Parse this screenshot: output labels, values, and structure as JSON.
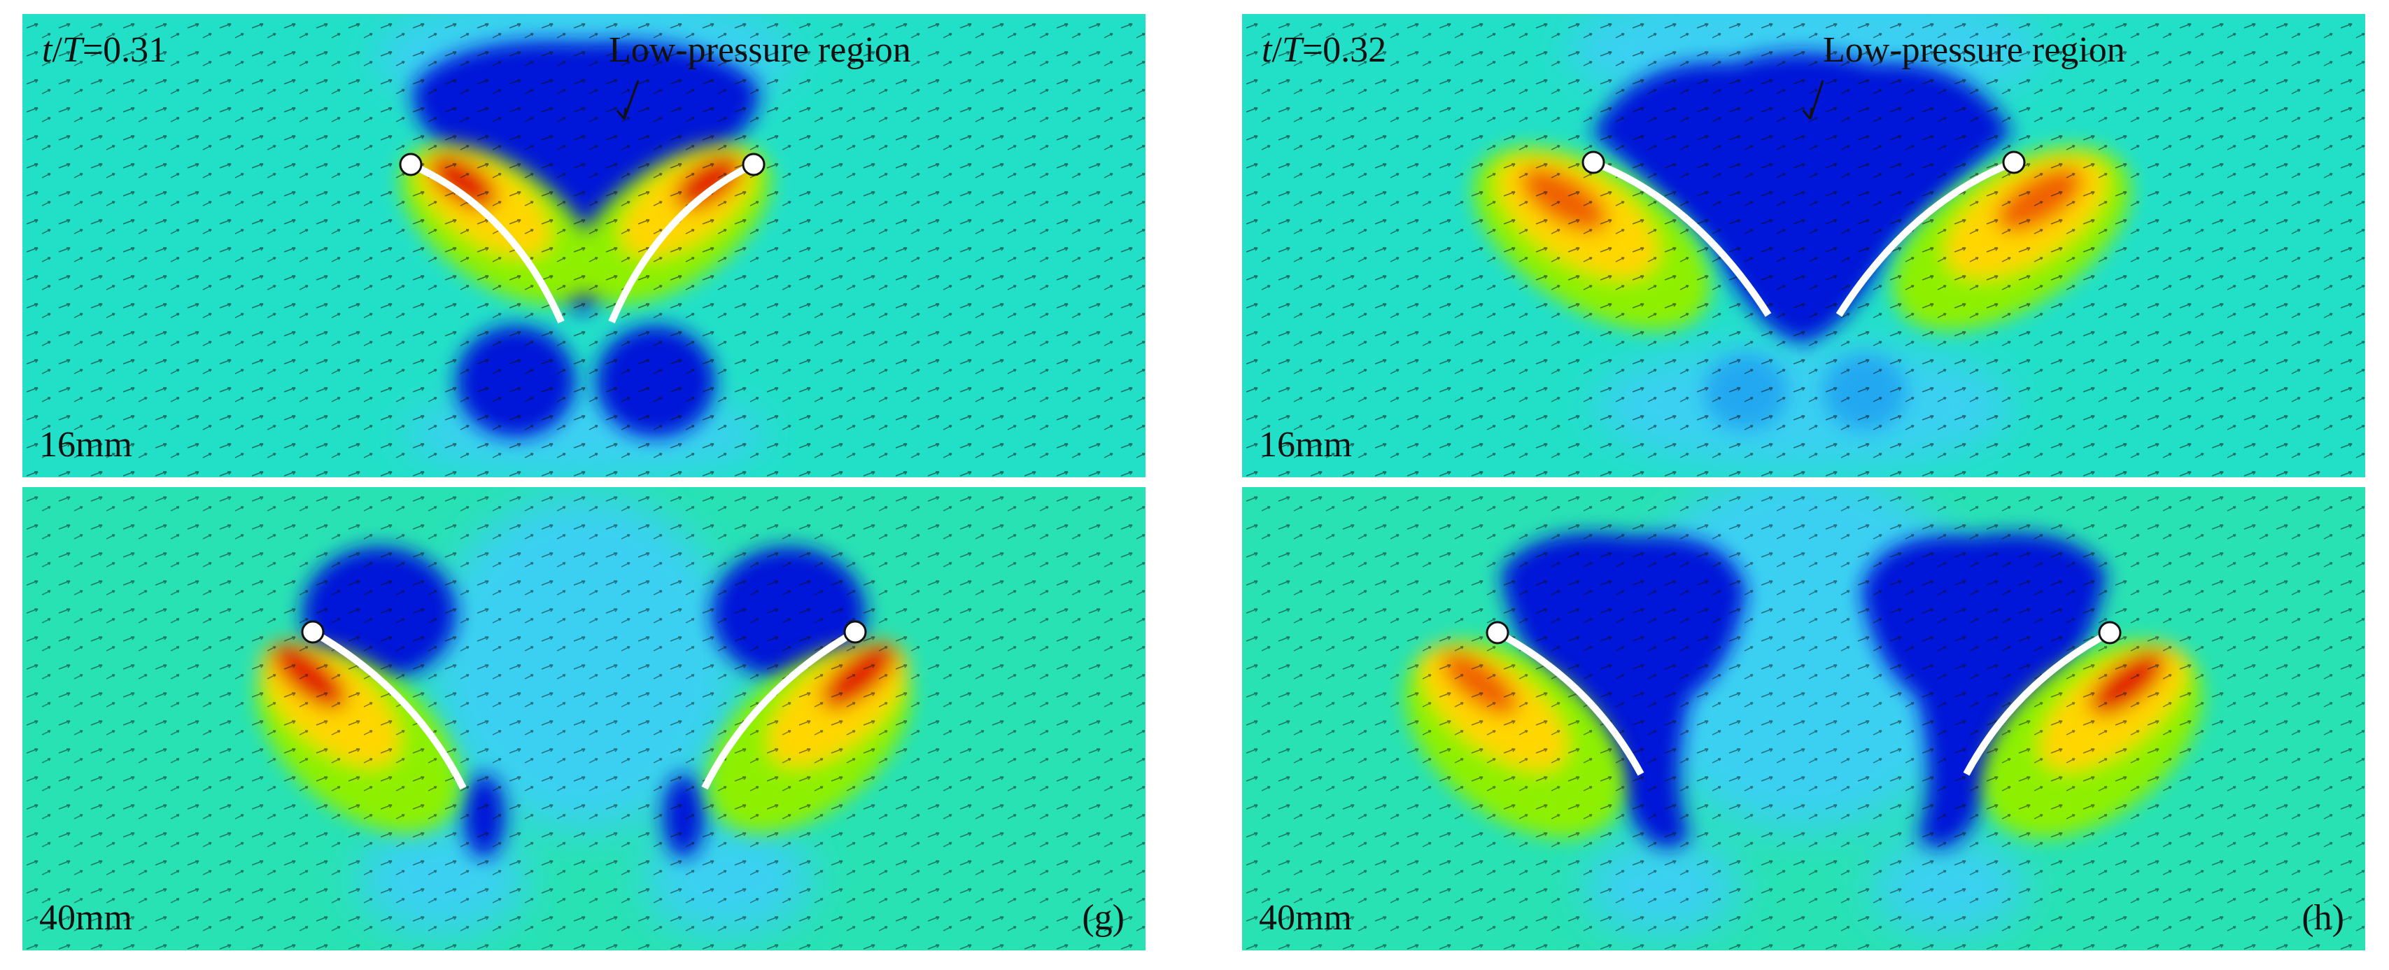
{
  "panels": [
    {
      "time_var_t": "t",
      "time_sep": "/",
      "time_var_T": "T",
      "time_val": "=0.31",
      "annotation": "Low-pressure region",
      "size_label": "16mm",
      "tag": ""
    },
    {
      "time_var_t": "t",
      "time_sep": "/",
      "time_var_T": "T",
      "time_val": "=0.32",
      "annotation": "Low-pressure region",
      "size_label": "16mm",
      "tag": ""
    },
    {
      "size_label": "40mm",
      "tag": "(g)"
    },
    {
      "size_label": "40mm",
      "tag": "(h)"
    }
  ],
  "colors": {
    "background_field": "#22e0c8",
    "low_pressure": "#0018d8",
    "high_pressure": "#e01800",
    "plate": "#ffffff",
    "vector": "#111111"
  }
}
